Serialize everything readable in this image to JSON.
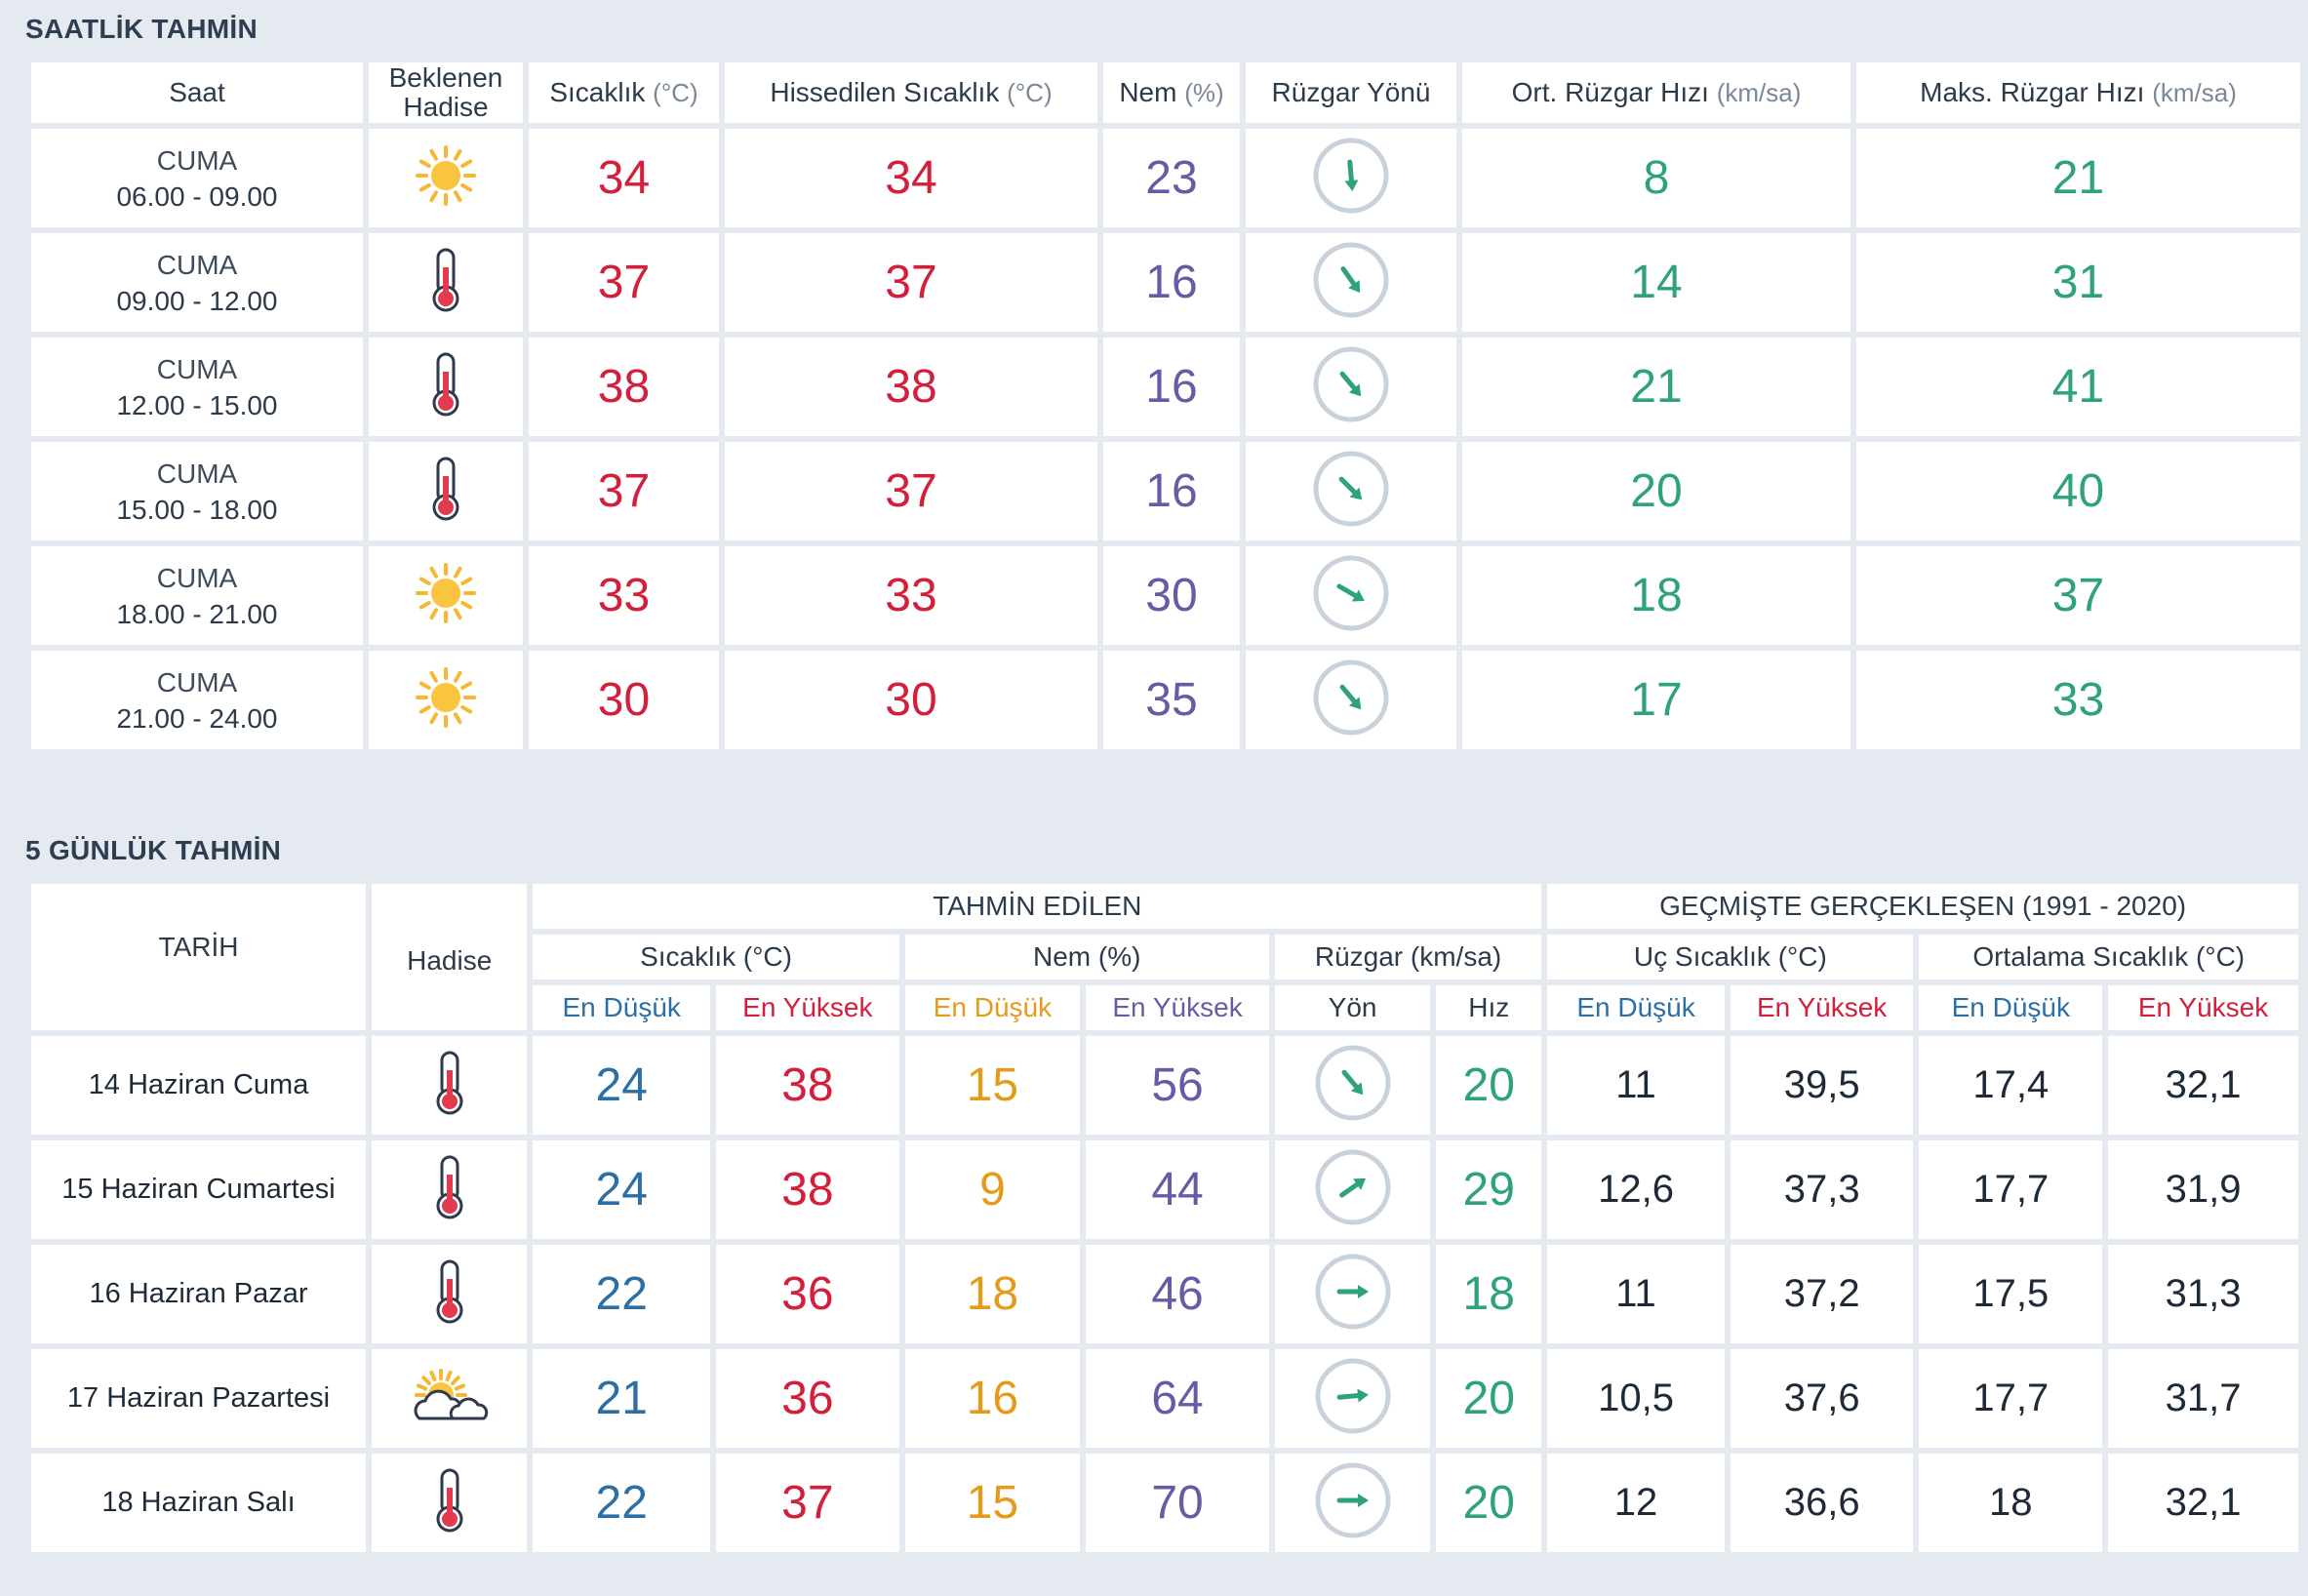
{
  "hourly": {
    "title": "SAATLİK TAHMİN",
    "headers": {
      "saat": "Saat",
      "hadise_line1": "Beklenen",
      "hadise_line2": "Hadise",
      "sicaklik": "Sıcaklık",
      "sicaklik_unit": "(°C)",
      "hissedilen": "Hissedilen Sıcaklık",
      "hissedilen_unit": "(°C)",
      "nem": "Nem",
      "nem_unit": "(%)",
      "ruzgar_yonu": "Rüzgar Yönü",
      "ort_ruzgar": "Ort. Rüzgar Hızı",
      "ort_ruzgar_unit": "(km/sa)",
      "maks_ruzgar": "Maks. Rüzgar Hızı",
      "maks_ruzgar_unit": "(km/sa)"
    },
    "rows": [
      {
        "day": "CUMA",
        "time": "06.00 - 09.00",
        "icon": "sun-icon",
        "temp": "34",
        "feels": "34",
        "humidity": "23",
        "wind_dir_deg": 175,
        "wind_avg": "8",
        "wind_max": "21"
      },
      {
        "day": "CUMA",
        "time": "09.00 - 12.00",
        "icon": "thermometer-icon",
        "temp": "37",
        "feels": "37",
        "humidity": "16",
        "wind_dir_deg": 145,
        "wind_avg": "14",
        "wind_max": "31"
      },
      {
        "day": "CUMA",
        "time": "12.00 - 15.00",
        "icon": "thermometer-icon",
        "temp": "38",
        "feels": "38",
        "humidity": "16",
        "wind_dir_deg": 140,
        "wind_avg": "21",
        "wind_max": "41"
      },
      {
        "day": "CUMA",
        "time": "15.00 - 18.00",
        "icon": "thermometer-icon",
        "temp": "37",
        "feels": "37",
        "humidity": "16",
        "wind_dir_deg": 135,
        "wind_avg": "20",
        "wind_max": "40"
      },
      {
        "day": "CUMA",
        "time": "18.00 - 21.00",
        "icon": "sun-icon",
        "temp": "33",
        "feels": "33",
        "humidity": "30",
        "wind_dir_deg": 120,
        "wind_avg": "18",
        "wind_max": "37"
      },
      {
        "day": "CUMA",
        "time": "21.00 - 24.00",
        "icon": "sun-icon",
        "temp": "30",
        "feels": "30",
        "humidity": "35",
        "wind_dir_deg": 140,
        "wind_avg": "17",
        "wind_max": "33"
      }
    ]
  },
  "daily": {
    "title": "5 GÜNLÜK TAHMİN",
    "headers": {
      "tarih": "TARİH",
      "hadise": "Hadise",
      "tahmin_edilen": "TAHMİN EDİLEN",
      "gecmiste": "GEÇMİŞTE GERÇEKLEŞEN (1991 - 2020)",
      "sicaklik": "Sıcaklık (°C)",
      "nem": "Nem (%)",
      "ruzgar": "Rüzgar (km/sa)",
      "uc_sicaklik": "Uç Sıcaklık (°C)",
      "ortalama_sicaklik": "Ortalama Sıcaklık (°C)",
      "en_dusuk": "En Düşük",
      "en_yuksek": "En Yüksek",
      "yon": "Yön",
      "hiz": "Hız"
    },
    "rows": [
      {
        "date": "14 Haziran Cuma",
        "icon": "thermometer-icon",
        "t_min": "24",
        "t_max": "38",
        "h_min": "15",
        "h_max": "56",
        "wind_dir_deg": 140,
        "wind_speed": "20",
        "ext_min": "11",
        "ext_max": "39,5",
        "avg_min": "17,4",
        "avg_max": "32,1"
      },
      {
        "date": "15 Haziran Cumartesi",
        "icon": "thermometer-icon",
        "t_min": "24",
        "t_max": "38",
        "h_min": "9",
        "h_max": "44",
        "wind_dir_deg": 55,
        "wind_speed": "29",
        "ext_min": "12,6",
        "ext_max": "37,3",
        "avg_min": "17,7",
        "avg_max": "31,9"
      },
      {
        "date": "16 Haziran Pazar",
        "icon": "thermometer-icon",
        "t_min": "22",
        "t_max": "36",
        "h_min": "18",
        "h_max": "46",
        "wind_dir_deg": 90,
        "wind_speed": "18",
        "ext_min": "11",
        "ext_max": "37,2",
        "avg_min": "17,5",
        "avg_max": "31,3"
      },
      {
        "date": "17 Haziran Pazartesi",
        "icon": "sun-cloud-icon",
        "t_min": "21",
        "t_max": "36",
        "h_min": "16",
        "h_max": "64",
        "wind_dir_deg": 85,
        "wind_speed": "20",
        "ext_min": "10,5",
        "ext_max": "37,6",
        "avg_min": "17,7",
        "avg_max": "31,7"
      },
      {
        "date": "18 Haziran Salı",
        "icon": "thermometer-icon",
        "t_min": "22",
        "t_max": "37",
        "h_min": "15",
        "h_max": "70",
        "wind_dir_deg": 90,
        "wind_speed": "20",
        "ext_min": "12",
        "ext_max": "36,6",
        "avg_min": "18",
        "avg_max": "32,1"
      }
    ]
  },
  "colors": {
    "temp": "#d21f3c",
    "humidity": "#6a5aa6",
    "wind": "#2ea27b",
    "min_temp": "#2b6fa5",
    "min_humidity": "#e49b1a",
    "background": "#e4eaf0"
  }
}
